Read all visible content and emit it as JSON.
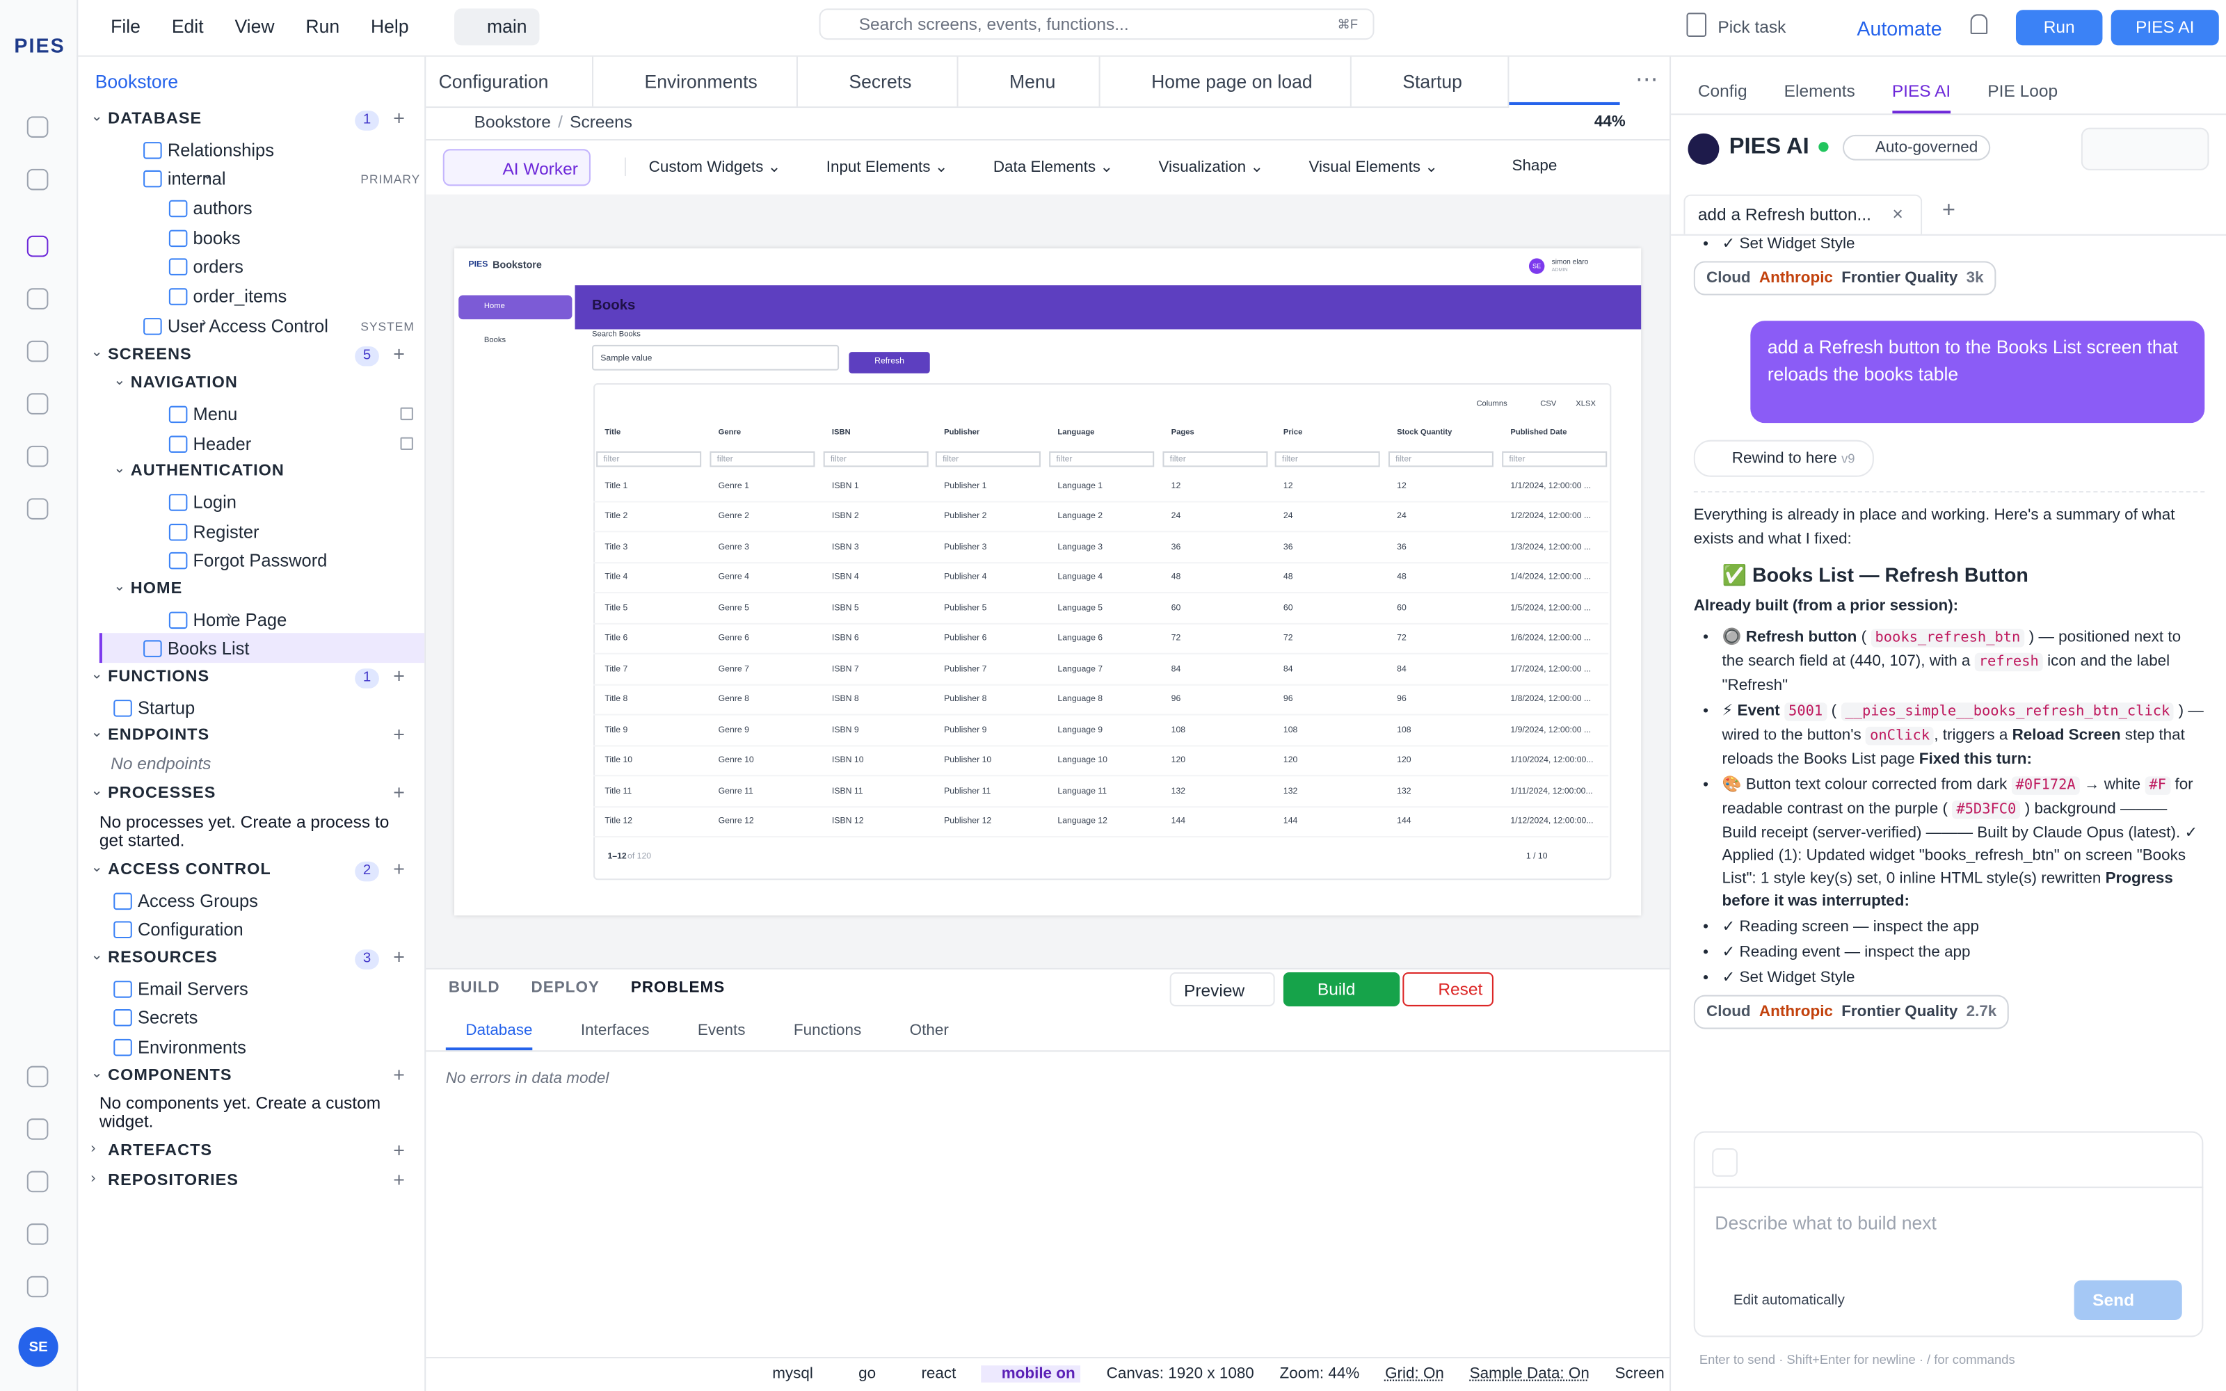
{
  "app": {
    "logo": "PIES",
    "user_initials": "SE"
  },
  "menu": [
    "File",
    "Edit",
    "View",
    "Run",
    "Help"
  ],
  "branch": "main",
  "search": {
    "placeholder": "Search screens, events, functions...",
    "shortcut": "⌘F"
  },
  "actions": {
    "pick_task": "Pick task",
    "automate": "Automate",
    "run": "Run",
    "pies_ai": "PIES AI"
  },
  "sidebar": {
    "project": "Bookstore",
    "items": [
      {
        "label": "DATABASE",
        "kind": "section",
        "count": 1
      },
      {
        "label": "Relationships",
        "kind": "item",
        "depth": 2
      },
      {
        "label": "internal",
        "kind": "item",
        "depth": 2,
        "expanded": true,
        "tag": "PRIMARY"
      },
      {
        "label": "authors",
        "kind": "item",
        "depth": 3
      },
      {
        "label": "books",
        "kind": "item",
        "depth": 3
      },
      {
        "label": "orders",
        "kind": "item",
        "depth": 3
      },
      {
        "label": "order_items",
        "kind": "item",
        "depth": 3
      },
      {
        "label": "User Access Control",
        "kind": "item",
        "depth": 2,
        "expanded": false,
        "tag": "SYSTEM"
      },
      {
        "label": "SCREENS",
        "kind": "section",
        "count": 5
      },
      {
        "label": "NAVIGATION",
        "kind": "group"
      },
      {
        "label": "Menu",
        "kind": "item",
        "depth": 3,
        "locked": true
      },
      {
        "label": "Header",
        "kind": "item",
        "depth": 3,
        "locked": true
      },
      {
        "label": "AUTHENTICATION",
        "kind": "group"
      },
      {
        "label": "Login",
        "kind": "item",
        "depth": 3
      },
      {
        "label": "Register",
        "kind": "item",
        "depth": 3
      },
      {
        "label": "Forgot Password",
        "kind": "item",
        "depth": 3
      },
      {
        "label": "HOME",
        "kind": "group"
      },
      {
        "label": "Home Page",
        "kind": "item",
        "depth": 3,
        "expanded": false
      },
      {
        "label": "Books List",
        "kind": "item",
        "depth": 2,
        "selected": true
      },
      {
        "label": "FUNCTIONS",
        "kind": "section",
        "count": 1
      },
      {
        "label": "Startup",
        "kind": "item",
        "depth": 1
      },
      {
        "label": "ENDPOINTS",
        "kind": "section"
      },
      {
        "label": "No endpoints",
        "kind": "note"
      },
      {
        "label": "PROCESSES",
        "kind": "section"
      },
      {
        "label": "No processes yet. Create a process to get started.",
        "kind": "note"
      },
      {
        "label": "ACCESS CONTROL",
        "kind": "section",
        "count": 2
      },
      {
        "label": "Access Groups",
        "kind": "item",
        "depth": 1
      },
      {
        "label": "Configuration",
        "kind": "item",
        "depth": 1
      },
      {
        "label": "RESOURCES",
        "kind": "section",
        "count": 3
      },
      {
        "label": "Email Servers",
        "kind": "item",
        "depth": 1
      },
      {
        "label": "Secrets",
        "kind": "item",
        "depth": 1
      },
      {
        "label": "Environments",
        "kind": "item",
        "depth": 1
      },
      {
        "label": "COMPONENTS",
        "kind": "section"
      },
      {
        "label": "No components yet. Create a custom widget.",
        "kind": "note"
      },
      {
        "label": "ARTEFACTS",
        "kind": "section",
        "expanded": false
      },
      {
        "label": "REPOSITORIES",
        "kind": "section",
        "expanded": false
      }
    ]
  },
  "editor": {
    "tabs": [
      "Configuration",
      "Environments",
      "Secrets",
      "Menu",
      "Home page on load",
      "Startup"
    ],
    "breadcrumb": [
      "Bookstore",
      "Screens"
    ],
    "zoom": "44%",
    "ai_worker": "AI Worker",
    "toolbar": [
      "Custom Widgets",
      "Input Elements",
      "Data Elements",
      "Visualization",
      "Visual Elements"
    ],
    "shape": "Shape"
  },
  "preview": {
    "app_name": "Bookstore",
    "user_name": "simon elaro",
    "user_role": "ADMIN",
    "user_initials": "SE",
    "nav": [
      "Home",
      "Books"
    ],
    "title": "Books",
    "search_label": "Search Books",
    "search_value": "Sample value",
    "button": "Refresh",
    "table_tools": [
      "Columns",
      "CSV",
      "XLSX"
    ],
    "columns": [
      "Title",
      "Genre",
      "ISBN",
      "Publisher",
      "Language",
      "Pages",
      "Price",
      "Stock Quantity",
      "Published Date"
    ],
    "filter": "filter",
    "rows": [
      [
        "Title 1",
        "Genre 1",
        "ISBN 1",
        "Publisher 1",
        "Language 1",
        12,
        12,
        12,
        "1/1/2024, 12:00:00 ..."
      ],
      [
        "Title 2",
        "Genre 2",
        "ISBN 2",
        "Publisher 2",
        "Language 2",
        24,
        24,
        24,
        "1/2/2024, 12:00:00 ..."
      ],
      [
        "Title 3",
        "Genre 3",
        "ISBN 3",
        "Publisher 3",
        "Language 3",
        36,
        36,
        36,
        "1/3/2024, 12:00:00 ..."
      ],
      [
        "Title 4",
        "Genre 4",
        "ISBN 4",
        "Publisher 4",
        "Language 4",
        48,
        48,
        48,
        "1/4/2024, 12:00:00 ..."
      ],
      [
        "Title 5",
        "Genre 5",
        "ISBN 5",
        "Publisher 5",
        "Language 5",
        60,
        60,
        60,
        "1/5/2024, 12:00:00 ..."
      ],
      [
        "Title 6",
        "Genre 6",
        "ISBN 6",
        "Publisher 6",
        "Language 6",
        72,
        72,
        72,
        "1/6/2024, 12:00:00 ..."
      ],
      [
        "Title 7",
        "Genre 7",
        "ISBN 7",
        "Publisher 7",
        "Language 7",
        84,
        84,
        84,
        "1/7/2024, 12:00:00 ..."
      ],
      [
        "Title 8",
        "Genre 8",
        "ISBN 8",
        "Publisher 8",
        "Language 8",
        96,
        96,
        96,
        "1/8/2024, 12:00:00 ..."
      ],
      [
        "Title 9",
        "Genre 9",
        "ISBN 9",
        "Publisher 9",
        "Language 9",
        108,
        108,
        108,
        "1/9/2024, 12:00:00 ..."
      ],
      [
        "Title 10",
        "Genre 10",
        "ISBN 10",
        "Publisher 10",
        "Language 10",
        120,
        120,
        120,
        "1/10/2024, 12:00:00..."
      ],
      [
        "Title 11",
        "Genre 11",
        "ISBN 11",
        "Publisher 11",
        "Language 11",
        132,
        132,
        132,
        "1/11/2024, 12:00:00..."
      ],
      [
        "Title 12",
        "Genre 12",
        "ISBN 12",
        "Publisher 12",
        "Language 12",
        144,
        144,
        144,
        "1/12/2024, 12:00:00..."
      ]
    ],
    "range": "1–12",
    "total": "of 120",
    "page": "1 / 10"
  },
  "bottom_panel": {
    "tabs": [
      "BUILD",
      "DEPLOY",
      "PROBLEMS"
    ],
    "preview": "Preview",
    "build": "Build",
    "reset": "Reset",
    "subtabs": [
      "Database",
      "Interfaces",
      "Events",
      "Functions",
      "Other"
    ],
    "message": "No errors in data model"
  },
  "status_bar": {
    "tech": [
      "mysql",
      "go",
      "react",
      "mobile on"
    ],
    "info": [
      "Canvas: 1920 x 1080",
      "Zoom: 44%",
      "Grid: On",
      "Sample Data: On",
      "Screen"
    ]
  },
  "assistant": {
    "tabs": [
      "Config",
      "Elements",
      "PIES AI",
      "PIE Loop"
    ],
    "title": "PIES AI",
    "mode": "Auto-governed",
    "chat_tab": "add a Refresh button...",
    "prior_steps": [
      "✓ Set Widget Style"
    ],
    "badges": [
      {
        "host": "Cloud",
        "provider": "Anthropic",
        "quality": "Frontier Quality",
        "tokens": "3k"
      },
      {
        "host": "Cloud",
        "provider": "Anthropic",
        "quality": "Frontier Quality",
        "tokens": "2.7k"
      }
    ],
    "user_message": "add a Refresh button to the Books List screen that reloads the books table",
    "rewind": "Rewind to here",
    "version": "v9",
    "intro": "Everything is already in place and working. Here's a summary of what exists and what I fixed:",
    "heading": "✅ Books List — Refresh Button",
    "subheading": "Already built (from a prior session):",
    "bullets": [
      [
        {
          "text": "🔘 "
        },
        {
          "text": "Refresh button",
          "style": "bold"
        },
        {
          "text": " ( "
        },
        {
          "text": "books_refresh_btn",
          "style": "code"
        },
        {
          "text": " ) — positioned next to the search field at (440, 107), with a "
        },
        {
          "text": "refresh",
          "style": "code"
        },
        {
          "text": " icon and the label \"Refresh\""
        }
      ],
      [
        {
          "text": "⚡ "
        },
        {
          "text": "Event",
          "style": "bold"
        },
        {
          "text": " "
        },
        {
          "text": "5001",
          "style": "code"
        },
        {
          "text": " ( "
        },
        {
          "text": "__pies_simple__books_refresh_btn_click",
          "style": "code"
        },
        {
          "text": " ) — wired to the button's "
        },
        {
          "text": "onClick",
          "style": "code"
        },
        {
          "text": ", triggers a "
        },
        {
          "text": "Reload Screen",
          "style": "bold"
        },
        {
          "text": " step that reloads the Books List page "
        },
        {
          "text": "Fixed this turn:",
          "style": "bold"
        }
      ],
      [
        {
          "text": "🎨 Button text colour corrected from dark "
        },
        {
          "text": "#0F172A",
          "style": "code"
        },
        {
          "text": " → white "
        },
        {
          "text": "#F",
          "style": "code"
        },
        {
          "text": " for readable contrast on the purple ( "
        },
        {
          "text": "#5D3FC0",
          "style": "code"
        },
        {
          "text": " ) background ——— Build receipt (server-verified) ——— Built by Claude Opus (latest). ✓ Applied (1): Updated widget \"books_refresh_btn\" on screen \"Books List\": 1 style key(s) set, 0 inline HTML style(s) rewritten "
        },
        {
          "text": "Progress before it was interrupted:",
          "style": "bold"
        }
      ],
      [
        {
          "text": "✓ Reading screen — inspect the app"
        }
      ],
      [
        {
          "text": "✓ Reading event — inspect the app"
        }
      ],
      [
        {
          "text": "✓ Set Widget Style"
        }
      ]
    ],
    "input_placeholder": "Describe what to build next",
    "edit_mode": "Edit automatically",
    "send": "Send",
    "hint": "Enter to send · Shift+Enter for newline · / for commands"
  }
}
